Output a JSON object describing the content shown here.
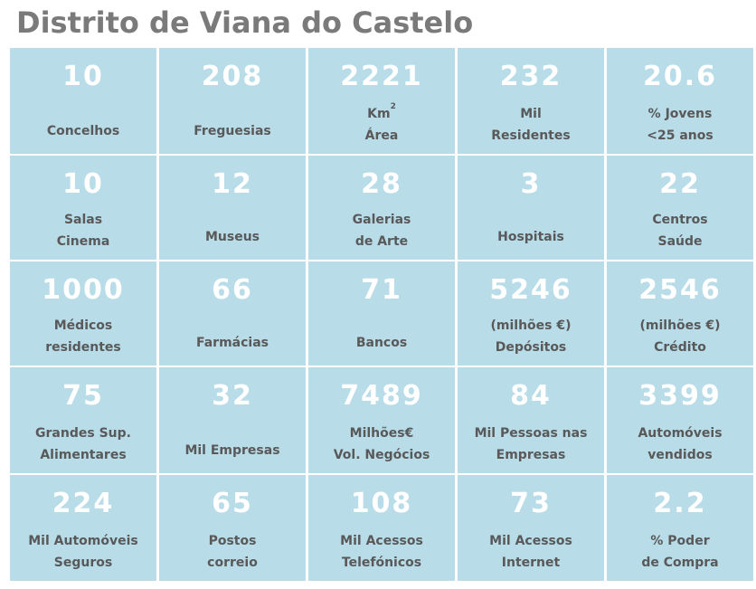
{
  "title": "Distrito de Viana do Castelo",
  "cells": [
    {
      "value": "10",
      "lines": [
        "Concelhos"
      ]
    },
    {
      "value": "208",
      "lines": [
        "Freguesias"
      ]
    },
    {
      "value": "2221",
      "lines": [
        "Km",
        "Área"
      ],
      "sup": "2"
    },
    {
      "value": "232",
      "lines": [
        "Mil",
        "Residentes"
      ]
    },
    {
      "value": "20.6",
      "lines": [
        "% Jovens",
        "<25 anos"
      ]
    },
    {
      "value": "10",
      "lines": [
        "Salas",
        "Cinema"
      ]
    },
    {
      "value": "12",
      "lines": [
        "Museus"
      ]
    },
    {
      "value": "28",
      "lines": [
        "Galerias",
        "de Arte"
      ]
    },
    {
      "value": "3",
      "lines": [
        "Hospitais"
      ]
    },
    {
      "value": "22",
      "lines": [
        "Centros",
        "Saúde"
      ]
    },
    {
      "value": "1000",
      "lines": [
        "Médicos",
        "residentes"
      ]
    },
    {
      "value": "66",
      "lines": [
        "Farmácias"
      ]
    },
    {
      "value": "71",
      "lines": [
        "Bancos"
      ]
    },
    {
      "value": "5246",
      "lines": [
        "(milhões €)",
        "Depósitos"
      ]
    },
    {
      "value": "2546",
      "lines": [
        "(milhões €)",
        "Crédito"
      ]
    },
    {
      "value": "75",
      "lines": [
        "Grandes Sup.",
        "Alimentares"
      ]
    },
    {
      "value": "32",
      "lines": [
        "Mil Empresas"
      ]
    },
    {
      "value": "7489",
      "lines": [
        "Milhões€",
        "Vol. Negócios"
      ]
    },
    {
      "value": "84",
      "lines": [
        "Mil Pessoas nas",
        "Empresas"
      ]
    },
    {
      "value": "3399",
      "lines": [
        "Automóveis",
        "vendidos"
      ]
    },
    {
      "value": "224",
      "lines": [
        "Mil Automóveis",
        "Seguros"
      ]
    },
    {
      "value": "65",
      "lines": [
        "Postos",
        "correio"
      ]
    },
    {
      "value": "108",
      "lines": [
        "Mil Acessos",
        "Telefónicos"
      ]
    },
    {
      "value": "73",
      "lines": [
        "Mil Acessos",
        "Internet"
      ]
    },
    {
      "value": "2.2",
      "lines": [
        "% Poder",
        "de Compra"
      ]
    }
  ],
  "colors": {
    "tile": "#b8dce8",
    "value_text": "#ffffff",
    "label_text": "#595959",
    "title_text": "#7a7a7a"
  }
}
